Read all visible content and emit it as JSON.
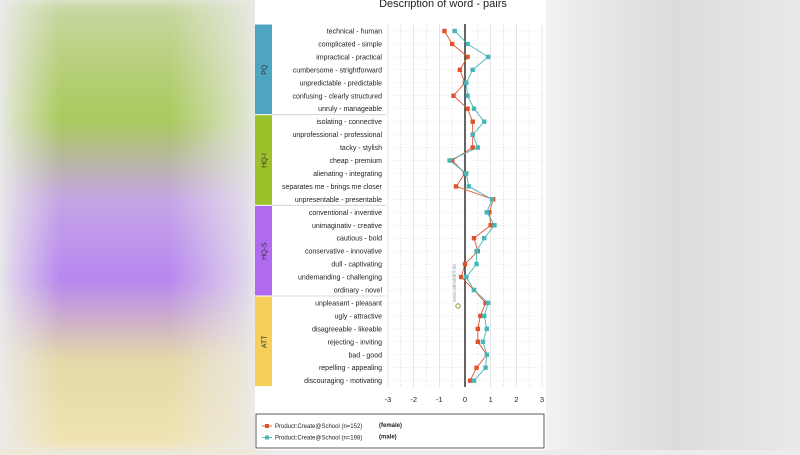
{
  "chart_data": {
    "type": "line",
    "title": "Description of word - pairs",
    "xlim": [
      -3,
      3
    ],
    "xticks": [
      "-3",
      "-2",
      "-1",
      "0",
      "1",
      "2",
      "3"
    ],
    "groups": [
      {
        "name": "PQ",
        "color": "#4ea5c1",
        "start": 0,
        "count": 7
      },
      {
        "name": "HQ-I",
        "color": "#9dc12a",
        "start": 7,
        "count": 7
      },
      {
        "name": "HQ-S",
        "color": "#b06bf0",
        "start": 14,
        "count": 7
      },
      {
        "name": "ATT",
        "color": "#f5cf59",
        "start": 21,
        "count": 7
      }
    ],
    "categories": [
      "technical - human",
      "complicated - simple",
      "impractical - practical",
      "cumbersome - stright­forward",
      "unpredictable - predictable",
      "confusing - clearly structured",
      "unruly - manageable",
      "isolating - connective",
      "unprofessional - professional",
      "tacky - stylish",
      "cheap - premium",
      "alienating - integrating",
      "separates me - brings me closer",
      "unpresentable - presentable",
      "conventional - inventive",
      "unimaginativ - creative",
      "cautious - bold",
      "conservative - innovative",
      "dull - captivating",
      "undemanding - challenging",
      "ordinary - novel",
      "unpleasant - pleasant",
      "ugly - attractive",
      "disagreeable - likeable",
      "rejecting - inviting",
      "bad - good",
      "repelling - appealing",
      "discouraging - motivating"
    ],
    "series": [
      {
        "name": "Product:Create@School (n=152)",
        "note": "(female)",
        "color": "#e0522a",
        "marker": "square",
        "values": [
          -0.8,
          -0.5,
          0.1,
          -0.2,
          0.0,
          -0.45,
          0.1,
          0.3,
          0.3,
          0.3,
          -0.5,
          0.0,
          -0.35,
          1.1,
          0.95,
          1.0,
          0.35,
          0.5,
          0.0,
          -0.15,
          0.35,
          0.8,
          0.6,
          0.5,
          0.5,
          0.85,
          0.45,
          0.2
        ]
      },
      {
        "name": "Product:Create@School (n=198)",
        "note": "(male)",
        "color": "#48b6b8",
        "marker": "square",
        "values": [
          -0.4,
          0.1,
          0.9,
          0.3,
          0.05,
          0.1,
          0.35,
          0.75,
          0.3,
          0.5,
          -0.6,
          0.05,
          0.15,
          1.05,
          0.85,
          1.15,
          0.75,
          0.45,
          0.45,
          0.05,
          0.35,
          0.9,
          0.75,
          0.85,
          0.7,
          0.85,
          0.8,
          0.35
        ]
      }
    ],
    "watermark": "www.attrakdiff.de"
  }
}
